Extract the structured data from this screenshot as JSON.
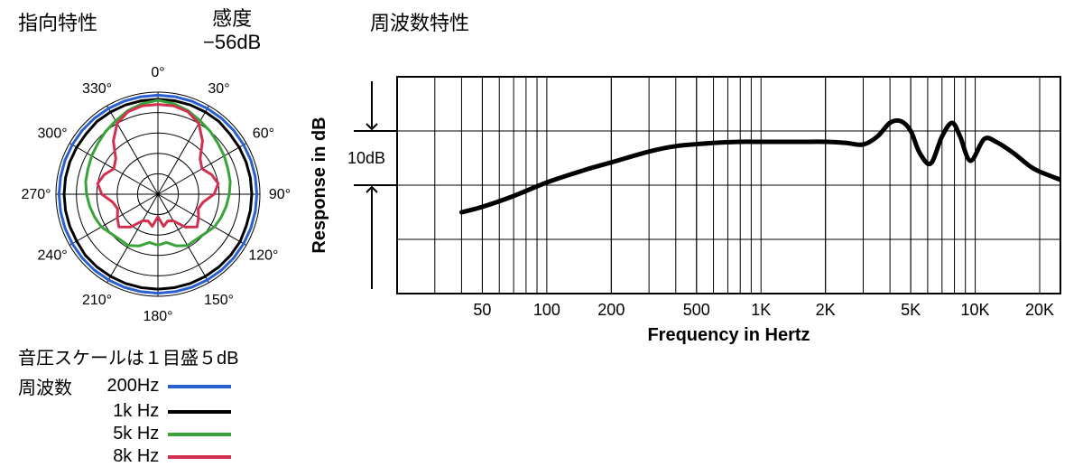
{
  "polar": {
    "title": "指向特性",
    "sensitivity_label": "感度",
    "sensitivity_value": "−56dB",
    "angle_labels": [
      "0°",
      "30°",
      "60°",
      "90°",
      "120°",
      "150°",
      "180°",
      "210°",
      "240°",
      "270°",
      "300°",
      "330°"
    ],
    "angle_step_deg": 30,
    "ring_count": 5,
    "grid_color": "#000000",
    "grid_stroke": 1,
    "legend_title": "音圧スケールは１目盛５dB",
    "legend_subtitle": "周波数",
    "series": [
      {
        "name": "200Hz",
        "label": "200Hz",
        "color": "#2a5fd0",
        "stroke": 3,
        "r": [
          0.97,
          0.97,
          0.97,
          0.97,
          0.97,
          0.97,
          0.97,
          0.97,
          0.97,
          0.97,
          0.97,
          0.97,
          0.97,
          0.97,
          0.97,
          0.97,
          0.97,
          0.97,
          0.97,
          0.97,
          0.97,
          0.97,
          0.97,
          0.97,
          0.97,
          0.97,
          0.97,
          0.97,
          0.97,
          0.97,
          0.97,
          0.97,
          0.97,
          0.97,
          0.97,
          0.97
        ]
      },
      {
        "name": "1kHz",
        "label": "1k Hz",
        "color": "#000000",
        "stroke": 3,
        "r": [
          0.93,
          0.93,
          0.93,
          0.93,
          0.93,
          0.92,
          0.92,
          0.92,
          0.92,
          0.92,
          0.92,
          0.92,
          0.93,
          0.93,
          0.93,
          0.93,
          0.93,
          0.93,
          0.93,
          0.93,
          0.93,
          0.93,
          0.93,
          0.93,
          0.92,
          0.92,
          0.92,
          0.92,
          0.92,
          0.92,
          0.92,
          0.92,
          0.93,
          0.93,
          0.93,
          0.93
        ]
      },
      {
        "name": "5kHz",
        "label": "5k Hz",
        "color": "#3aa23a",
        "stroke": 3,
        "r": [
          0.92,
          0.9,
          0.87,
          0.83,
          0.8,
          0.77,
          0.75,
          0.73,
          0.72,
          0.7,
          0.68,
          0.66,
          0.64,
          0.6,
          0.58,
          0.58,
          0.54,
          0.48,
          0.5,
          0.48,
          0.54,
          0.58,
          0.58,
          0.6,
          0.64,
          0.66,
          0.68,
          0.7,
          0.72,
          0.73,
          0.75,
          0.77,
          0.8,
          0.83,
          0.87,
          0.9
        ]
      },
      {
        "name": "8kHz",
        "label": "8k Hz",
        "color": "#d1304f",
        "stroke": 3,
        "r": [
          0.88,
          0.88,
          0.86,
          0.8,
          0.68,
          0.54,
          0.5,
          0.56,
          0.6,
          0.55,
          0.45,
          0.42,
          0.46,
          0.5,
          0.42,
          0.3,
          0.28,
          0.32,
          0.22,
          0.32,
          0.28,
          0.3,
          0.42,
          0.5,
          0.46,
          0.42,
          0.45,
          0.55,
          0.6,
          0.56,
          0.5,
          0.54,
          0.68,
          0.8,
          0.86,
          0.88
        ]
      }
    ]
  },
  "freq": {
    "title": "周波数特性",
    "x_label": "Frequency in Hertz",
    "y_label": "Response in dB",
    "tick_10db": "10dB",
    "x_ticks": [
      50,
      100,
      200,
      500,
      1000,
      2000,
      5000,
      10000,
      20000
    ],
    "x_tick_labels": [
      "50",
      "100",
      "200",
      "500",
      "1K",
      "2K",
      "5K",
      "10K",
      "20K"
    ],
    "x_min": 20,
    "x_max": 25000,
    "y_min_db": -30,
    "y_max_db": 10,
    "grid_color": "#000000",
    "grid_stroke": 1,
    "border_stroke": 2,
    "tick_fontsize": 18,
    "label_fontsize": 20,
    "curve_color": "#000000",
    "curve_stroke": 5,
    "curve": [
      {
        "f": 40,
        "db": -15
      },
      {
        "f": 50,
        "db": -14
      },
      {
        "f": 70,
        "db": -12
      },
      {
        "f": 100,
        "db": -9.5
      },
      {
        "f": 150,
        "db": -7.2
      },
      {
        "f": 200,
        "db": -5.8
      },
      {
        "f": 300,
        "db": -3.8
      },
      {
        "f": 400,
        "db": -2.8
      },
      {
        "f": 600,
        "db": -2.2
      },
      {
        "f": 800,
        "db": -2.0
      },
      {
        "f": 1000,
        "db": -2.0
      },
      {
        "f": 1500,
        "db": -2.0
      },
      {
        "f": 2000,
        "db": -2.0
      },
      {
        "f": 2500,
        "db": -2.2
      },
      {
        "f": 3000,
        "db": -2.5
      },
      {
        "f": 3500,
        "db": -1.0
      },
      {
        "f": 4000,
        "db": 1.5
      },
      {
        "f": 4500,
        "db": 1.8
      },
      {
        "f": 5000,
        "db": 0
      },
      {
        "f": 5500,
        "db": -4.0
      },
      {
        "f": 6200,
        "db": -6.0
      },
      {
        "f": 7000,
        "db": -1.0
      },
      {
        "f": 7800,
        "db": 1.5
      },
      {
        "f": 8500,
        "db": -1.0
      },
      {
        "f": 9500,
        "db": -5.5
      },
      {
        "f": 11000,
        "db": -1.5
      },
      {
        "f": 12500,
        "db": -2.0
      },
      {
        "f": 15000,
        "db": -4.0
      },
      {
        "f": 18000,
        "db": -6.5
      },
      {
        "f": 20000,
        "db": -7.5
      },
      {
        "f": 25000,
        "db": -9.0
      }
    ]
  }
}
